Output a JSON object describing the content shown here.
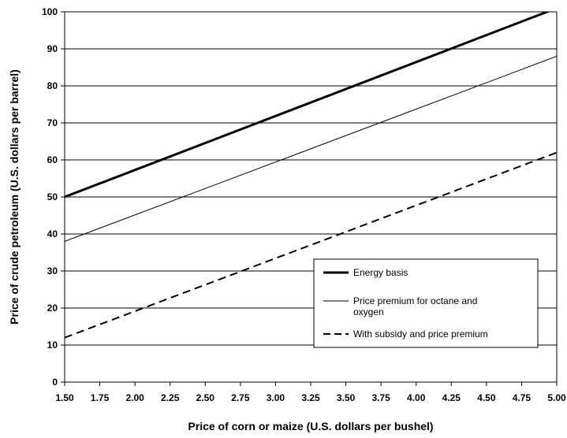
{
  "chart_data": {
    "type": "line",
    "xlabel": "Price of corn or maize (U.S. dollars per bushel)",
    "ylabel": "Price of crude petroleum (U.S. dollars per barrel)",
    "xlim": [
      1.5,
      5.0
    ],
    "ylim": [
      0,
      100
    ],
    "x_ticks": [
      "1.50",
      "1.75",
      "2.00",
      "2.25",
      "2.50",
      "2.75",
      "3.00",
      "3.25",
      "3.50",
      "3.75",
      "4.00",
      "4.25",
      "4.50",
      "4.75",
      "5.00"
    ],
    "y_ticks": [
      "0",
      "10",
      "20",
      "30",
      "40",
      "50",
      "60",
      "70",
      "80",
      "90",
      "100"
    ],
    "grid": "horizontal",
    "legend_position": "bottom-right",
    "series": [
      {
        "name": "Energy basis",
        "x": [
          1.5,
          5.0
        ],
        "y": [
          50,
          101
        ],
        "style": "solid-thick",
        "color": "#000000"
      },
      {
        "name": "Price premium for octane and oxygen",
        "x": [
          1.5,
          5.0
        ],
        "y": [
          38,
          88
        ],
        "style": "solid-thin",
        "color": "#000000"
      },
      {
        "name": "With subsidy and price premium",
        "x": [
          1.5,
          5.0
        ],
        "y": [
          12,
          62
        ],
        "style": "dashed",
        "color": "#000000"
      }
    ],
    "legend_lines": [
      [
        "Energy basis"
      ],
      [
        "Price premium for octane and",
        "oxygen"
      ],
      [
        "With subsidy and price premium"
      ]
    ]
  }
}
